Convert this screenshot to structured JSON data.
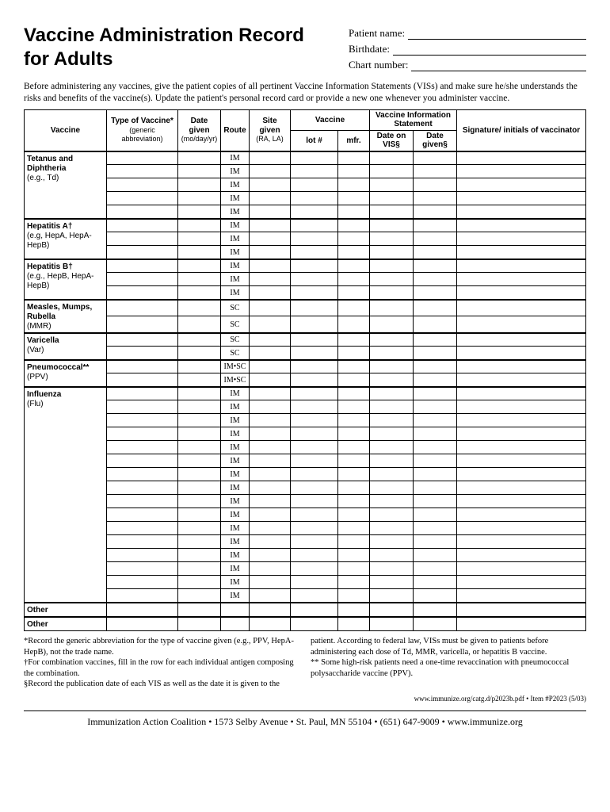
{
  "title_line1": "Vaccine Administration Record",
  "title_line2": "for Adults",
  "patient": {
    "name_label": "Patient name:",
    "birthdate_label": "Birthdate:",
    "chart_label": "Chart number:"
  },
  "intro": "Before administering any vaccines, give the patient copies of all pertinent Vaccine Information Statements (VISs) and make sure he/she understands the risks and benefits of the vaccine(s). Update the patient's personal record card or provide a new one whenever you administer vaccine.",
  "headers": {
    "vaccine": "Vaccine",
    "type": "Type of Vaccine*",
    "type_sub": "(generic abbreviation)",
    "date": "Date given",
    "date_sub": "(mo/day/yr)",
    "route": "Route",
    "site": "Site given",
    "site_sub": "(RA, LA)",
    "vax2": "Vaccine",
    "lot": "lot #",
    "mfr": "mfr.",
    "vis": "Vaccine Information Statement",
    "vis_date": "Date on VIS§",
    "vis_given": "Date given§",
    "sig": "Signature/ initials of vaccinator"
  },
  "sections": [
    {
      "name": "Tetanus and Diphtheria",
      "sub": "(e.g., Td)",
      "route": "IM",
      "rows": 5
    },
    {
      "name": "Hepatitis A†",
      "sub": "(e.g, HepA, HepA-HepB)",
      "route": "IM",
      "rows": 3
    },
    {
      "name": "Hepatitis B†",
      "sub": "(e.g., HepB, HepA-HepB)",
      "route": "IM",
      "rows": 3
    },
    {
      "name": "Measles, Mumps, Rubella",
      "sub": "(MMR)",
      "route": "SC",
      "rows": 2
    },
    {
      "name": "Varicella",
      "sub": "(Var)",
      "route": "SC",
      "rows": 2
    },
    {
      "name": "Pneumococcal**",
      "sub": "(PPV)",
      "route": "IM•SC",
      "rows": 2
    },
    {
      "name": "Influenza",
      "sub": "(Flu)",
      "route": "IM",
      "rows": 16
    },
    {
      "name": "Other",
      "sub": "",
      "route": "",
      "rows": 1
    },
    {
      "name": "Other",
      "sub": "",
      "route": "",
      "rows": 1
    }
  ],
  "footnotes": {
    "left": [
      "*Record the generic abbreviation for the type of vaccine given (e.g., PPV, HepA-HepB), not the trade name.",
      "†For combination vaccines, fill in the row for each individual antigen composing the combination.",
      "§Record the publication date of each VIS as well as the date it is given to the"
    ],
    "right": [
      "patient. According to federal law, VISs must be given to patients before administering each dose of Td, MMR, varicella, or hepatitis B vaccine.",
      "** Some high-risk patients need a one-time revaccination with pneumococcal polysaccharide vaccine (PPV)."
    ]
  },
  "item_line": "www.immunize.org/catg.d/p2023b.pdf  •  Item #P2023 (5/03)",
  "footer": "Immunization Action Coalition  •  1573 Selby Avenue  •  St. Paul, MN 55104  •  (651) 647-9009  •  www.immunize.org",
  "col_widths": {
    "vaccine": "104px",
    "type": "90px",
    "date": "54px",
    "route": "36px",
    "site": "52px",
    "lot": "60px",
    "mfr": "40px",
    "vis_date": "55px",
    "vis_given": "55px",
    "sig": "auto"
  }
}
